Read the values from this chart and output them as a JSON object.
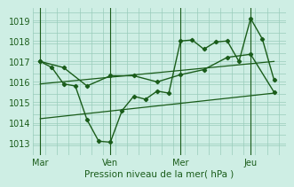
{
  "bg_color": "#ceeee4",
  "grid_color": "#99ccbb",
  "line_color": "#1a5c1a",
  "marker_color": "#1a5c1a",
  "xlabel": "Pression niveau de la mer( hPa )",
  "ylim": [
    1012.4,
    1019.6
  ],
  "yticks": [
    1013,
    1014,
    1015,
    1016,
    1017,
    1018,
    1019
  ],
  "xtick_labels": [
    "Mar",
    "Ven",
    "Mer",
    "Jeu"
  ],
  "xtick_positions": [
    0,
    30,
    60,
    90
  ],
  "xlim": [
    -3,
    105
  ],
  "vline_positions": [
    0,
    30,
    60,
    90
  ],
  "series1_x": [
    0,
    5,
    10,
    15,
    20,
    25,
    30,
    35,
    40,
    45,
    50,
    55,
    60,
    65,
    70,
    75,
    80,
    85,
    90,
    95,
    100
  ],
  "series1_y": [
    1017.0,
    1016.7,
    1015.9,
    1015.8,
    1014.15,
    1013.1,
    1013.05,
    1014.6,
    1015.3,
    1015.15,
    1015.55,
    1015.45,
    1018.0,
    1018.05,
    1017.6,
    1017.95,
    1018.0,
    1017.0,
    1019.1,
    1018.1,
    1016.1
  ],
  "series2_x": [
    0,
    10,
    20,
    30,
    40,
    50,
    60,
    70,
    80,
    90,
    100
  ],
  "series2_y": [
    1017.0,
    1016.7,
    1015.8,
    1016.3,
    1016.3,
    1016.0,
    1016.35,
    1016.6,
    1017.2,
    1017.35,
    1015.5
  ],
  "trend1_x": [
    0,
    100
  ],
  "trend1_y": [
    1015.9,
    1017.0
  ],
  "trend2_x": [
    0,
    100
  ],
  "trend2_y": [
    1014.2,
    1015.45
  ]
}
